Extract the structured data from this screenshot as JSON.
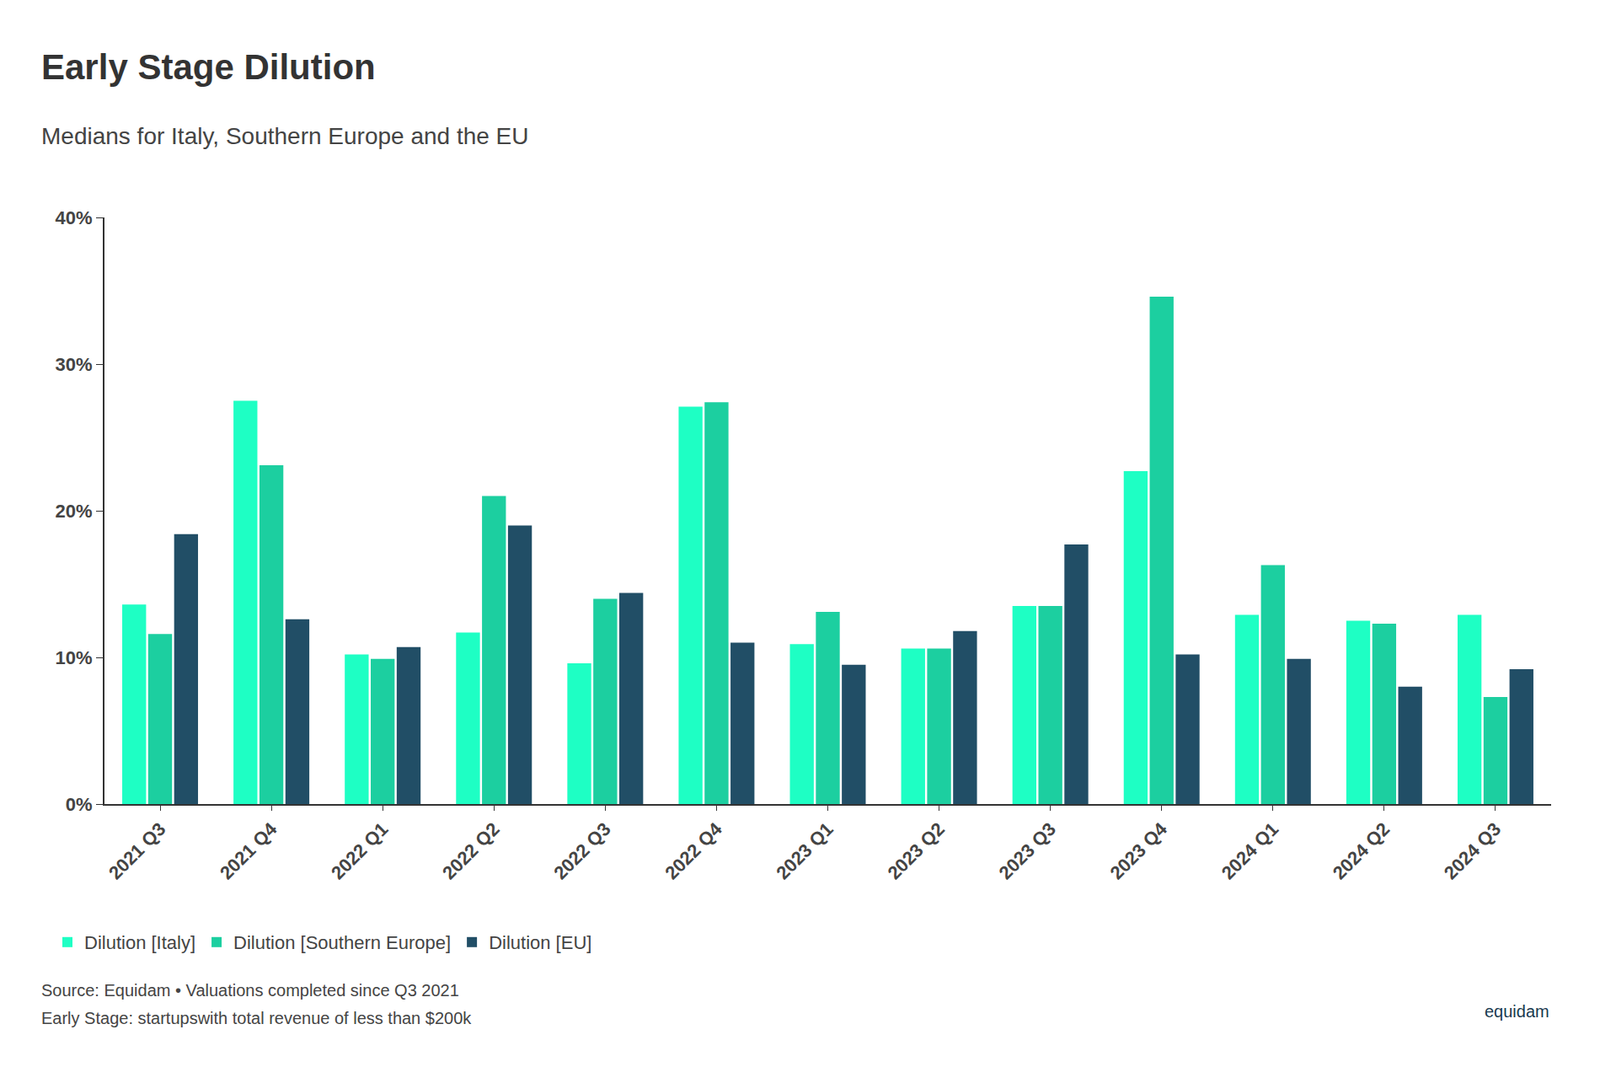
{
  "chart_data": {
    "type": "bar",
    "title": "Early Stage Dilution",
    "subtitle": "Medians for Italy, Southern Europe and the EU",
    "footnotes": [
      "Source: Equidam • Valuations completed since Q3 2021",
      "Early Stage: startupswith total revenue of less than $200k"
    ],
    "logo": "equidam",
    "categories": [
      "2021 Q3",
      "2021 Q4",
      "2022 Q1",
      "2022 Q2",
      "2022 Q3",
      "2022 Q4",
      "2023 Q1",
      "2023 Q2",
      "2023 Q3",
      "2023 Q4",
      "2024 Q1",
      "2024 Q2",
      "2024 Q3"
    ],
    "series": [
      {
        "name": "Dilution [Italy]",
        "color": "#1effc4",
        "values": [
          13.6,
          27.5,
          10.2,
          11.7,
          9.6,
          27.1,
          10.9,
          10.6,
          13.5,
          22.7,
          12.9,
          12.5,
          12.9
        ]
      },
      {
        "name": "Dilution [Southern Europe]",
        "color": "#1ccfa0",
        "values": [
          11.6,
          23.1,
          9.9,
          21.0,
          14.0,
          27.4,
          13.1,
          10.6,
          13.5,
          34.6,
          16.3,
          12.3,
          7.3
        ]
      },
      {
        "name": "Dilution [EU]",
        "color": "#214e66",
        "values": [
          18.4,
          12.6,
          10.7,
          19.0,
          14.4,
          11.0,
          9.5,
          11.8,
          17.7,
          10.2,
          9.9,
          8.0,
          9.2
        ]
      }
    ],
    "ylim": [
      0,
      40
    ],
    "yticks": [
      {
        "value": 0,
        "label": "0%"
      },
      {
        "value": 10,
        "label": "10%"
      },
      {
        "value": 20,
        "label": "20%"
      },
      {
        "value": 30,
        "label": "30%"
      },
      {
        "value": 40,
        "label": "40%"
      }
    ],
    "grid": false,
    "legend": "bottom-left"
  }
}
